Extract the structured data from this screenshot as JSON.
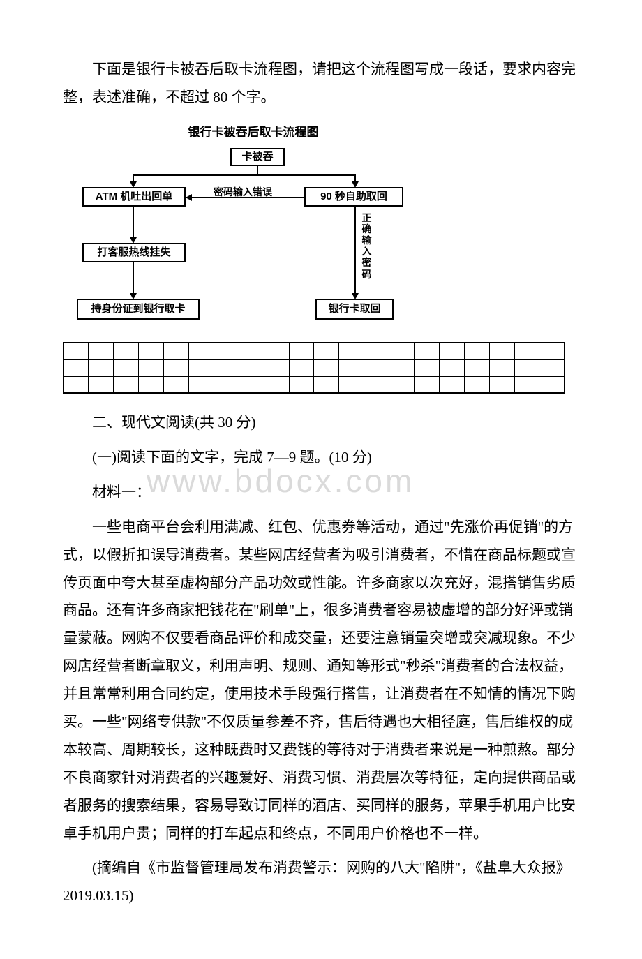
{
  "intro": "下面是银行卡被吞后取卡流程图，请把这个流程图写成一段话，要求内容完整，表述准确，不超过 80 个字。",
  "flowchart": {
    "title": "银行卡被吞后取卡流程图",
    "nodes": {
      "start": "卡被吞",
      "left1": "ATM 机吐出回单",
      "right1": "90 秒自助取回",
      "mid_label": "密码输入错误",
      "left2": "打客服热线挂失",
      "left3": "持身份证到银行取卡",
      "right_v": "正确输入密码",
      "right2": "银行卡取回"
    },
    "colors": {
      "line": "#000000",
      "box_border": "#000000",
      "bg": "#ffffff"
    }
  },
  "answer_grid": {
    "rows": 3,
    "cols": 20
  },
  "section2_heading": "二、现代文阅读(共 30 分)",
  "sub_heading": "(一)阅读下面的文字，完成 7—9 题。(10 分)",
  "material_label": "材料一：",
  "body_para": "一些电商平台会利用满减、红包、优惠券等活动，通过\"先涨价再促销\"的方式，以假折扣误导消费者。某些网店经营者为吸引消费者，不惜在商品标题或宣传页面中夸大甚至虚构部分产品功效或性能。许多商家以次充好，混搭销售劣质商品。还有许多商家把钱花在\"刷单\"上，很多消费者容易被虚增的部分好评或销量蒙蔽。网购不仅要看商品评价和成交量，还要注意销量突增或突减现象。不少网店经营者断章取义，利用声明、规则、通知等形式\"秒杀\"消费者的合法权益，并且常常利用合同约定，使用技术手段强行搭售，让消费者在不知情的情况下购买。一些\"网络专供款\"不仅质量参差不齐，售后待遇也大相径庭，售后维权的成本较高、周期较长，这种既费时又费钱的等待对于消费者来说是一种煎熬。部分不良商家针对消费者的兴趣爱好、消费习惯、消费层次等特征，定向提供商品或者服务的搜索结果，容易导致订同样的酒店、买同样的服务，苹果手机用户比安卓手机用户贵；同样的打车起点和终点，不同用户价格也不一样。",
  "citation": "(摘编自《市监督管理局发布消费警示：网购的八大\"陷阱\"，《盐阜大众报》2019.03.15)",
  "watermark": "www.bdocx.com"
}
